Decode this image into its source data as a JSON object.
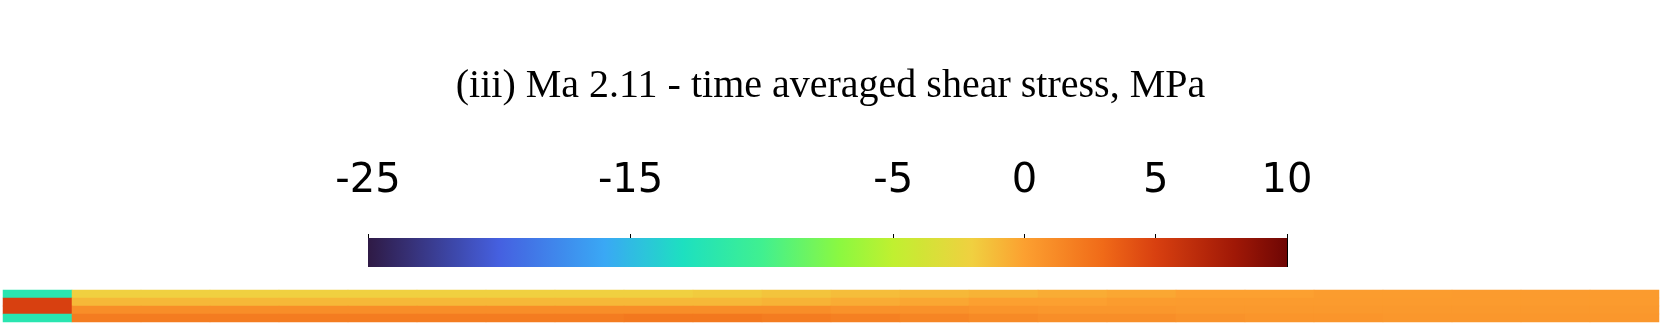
{
  "chart_data": {
    "type": "heatmap",
    "title": "(iii) Ma 2.11 - time averaged shear stress, MPa",
    "categories": [
      null,
      null,
      null,
      null,
      null,
      null,
      null,
      null,
      null,
      null,
      null,
      null,
      null,
      null,
      null,
      null,
      null,
      null,
      null,
      null,
      null,
      null,
      null,
      null
    ],
    "y_categories": [
      null,
      null,
      null,
      null
    ],
    "cells": [
      [
        -12,
        -2,
        -2,
        -2,
        -2,
        -2,
        -2,
        -2,
        -2,
        -2,
        -1.8,
        -1.5,
        -1.2,
        -1,
        -0.8,
        -0.5,
        -0.3,
        0,
        0,
        0.2,
        0.2,
        0.3,
        0.3,
        0.3
      ],
      [
        5,
        -1,
        -1,
        -1,
        -1,
        -1,
        -1,
        -1,
        -1,
        -1,
        -1,
        -0.8,
        -0.5,
        -0.3,
        0,
        0,
        0.2,
        0.3,
        0.3,
        0.3,
        0.3,
        0.3,
        0.3,
        0.3
      ],
      [
        5,
        1,
        1,
        1,
        1,
        1,
        1,
        1,
        1,
        1,
        1,
        1,
        0.8,
        0.8,
        0.6,
        0.5,
        0.5,
        0.4,
        0.4,
        0.4,
        0.4,
        0.4,
        0.4,
        0.4
      ],
      [
        -12,
        2,
        2,
        2,
        2,
        2,
        2,
        2,
        2,
        2.2,
        2.2,
        2,
        1.8,
        1.5,
        1.2,
        1,
        1,
        0.8,
        0.6,
        0.6,
        0.5,
        0.5,
        0.5,
        0.5
      ]
    ],
    "clim": [
      -25,
      10
    ],
    "cticks": [
      -25,
      -15,
      -5,
      0,
      5,
      10
    ]
  }
}
